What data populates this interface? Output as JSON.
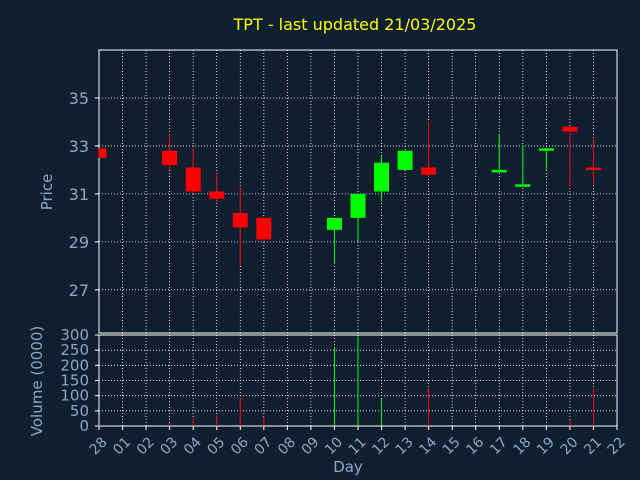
{
  "chart_data": {
    "type": "candlestick",
    "title": "TPT - last updated 21/03/2025",
    "xlabel": "Day",
    "colors": {
      "background": "#0f1f30",
      "plot_border": "#ffffff",
      "grid": "#ffffff",
      "axis_text": "#8aa8c8",
      "title": "#ffff00",
      "up": "#00ff00",
      "down": "#ff0000"
    },
    "x_ticks": [
      "28",
      "01",
      "02",
      "03",
      "04",
      "05",
      "06",
      "07",
      "08",
      "09",
      "10",
      "11",
      "12",
      "13",
      "14",
      "15",
      "16",
      "17",
      "18",
      "19",
      "20",
      "21",
      "22"
    ],
    "price_panel": {
      "ylabel": "Price",
      "ylim": [
        25.2,
        37.0
      ],
      "y_ticks": [
        27,
        29,
        31,
        33,
        35
      ],
      "grid": true
    },
    "volume_panel": {
      "ylabel": "Volume (0000)",
      "ylim": [
        0,
        300
      ],
      "y_ticks": [
        0,
        50,
        100,
        150,
        200,
        250,
        300
      ],
      "grid": true
    },
    "candles": [
      {
        "day": "28",
        "open": 32.9,
        "close": 32.5,
        "high": 32.9,
        "low": 32.5,
        "volume": 3
      },
      {
        "day": "03",
        "open": 32.8,
        "close": 32.2,
        "high": 33.5,
        "low": 32.0,
        "volume": 10
      },
      {
        "day": "04",
        "open": 32.1,
        "close": 31.1,
        "high": 32.9,
        "low": 31.0,
        "volume": 25
      },
      {
        "day": "05",
        "open": 31.1,
        "close": 30.8,
        "high": 31.9,
        "low": 30.6,
        "volume": 35
      },
      {
        "day": "06",
        "open": 30.2,
        "close": 29.6,
        "high": 31.3,
        "low": 28.0,
        "volume": 95
      },
      {
        "day": "07",
        "open": 30.0,
        "close": 29.1,
        "high": 30.0,
        "low": 29.0,
        "volume": 30
      },
      {
        "day": "10",
        "open": 29.5,
        "close": 30.0,
        "high": 30.0,
        "low": 28.1,
        "volume": 260
      },
      {
        "day": "11",
        "open": 30.0,
        "close": 31.0,
        "high": 31.0,
        "low": 29.0,
        "volume": 295
      },
      {
        "day": "12",
        "open": 31.1,
        "close": 32.3,
        "high": 32.6,
        "low": 30.7,
        "volume": 90
      },
      {
        "day": "13",
        "open": 32.0,
        "close": 32.8,
        "high": 32.8,
        "low": 32.0,
        "volume": 5
      },
      {
        "day": "14",
        "open": 32.1,
        "close": 31.8,
        "high": 34.0,
        "low": 31.7,
        "volume": 125
      },
      {
        "day": "17",
        "open": 32.0,
        "close": 32.0,
        "high": 33.5,
        "low": 32.0,
        "volume": 3
      },
      {
        "day": "18",
        "open": 31.3,
        "close": 31.4,
        "high": 33.0,
        "low": 31.3,
        "volume": 3
      },
      {
        "day": "19",
        "open": 32.9,
        "close": 32.9,
        "high": 32.9,
        "low": 32.0,
        "volume": 3
      },
      {
        "day": "20",
        "open": 33.8,
        "close": 33.6,
        "high": 33.8,
        "low": 31.3,
        "volume": 20
      },
      {
        "day": "21",
        "open": 32.1,
        "close": 32.0,
        "high": 33.3,
        "low": 31.4,
        "volume": 125
      }
    ]
  }
}
